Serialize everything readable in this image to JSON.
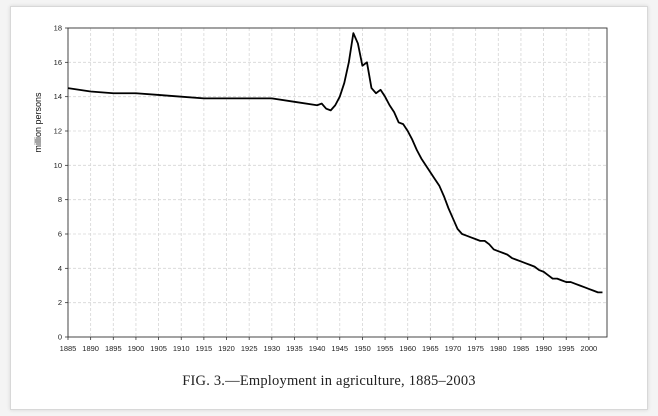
{
  "chart_data": {
    "type": "line",
    "caption": "FIG. 3.—Employment in agriculture, 1885–2003",
    "ylabel": "million persons",
    "xlabel": "",
    "xlim": [
      1885,
      2004
    ],
    "ylim": [
      0,
      18
    ],
    "yticks": [
      0,
      2,
      4,
      6,
      8,
      10,
      12,
      14,
      16,
      18
    ],
    "xticks": [
      1885,
      1890,
      1895,
      1900,
      1905,
      1910,
      1915,
      1920,
      1925,
      1930,
      1935,
      1940,
      1945,
      1950,
      1955,
      1960,
      1965,
      1970,
      1975,
      1980,
      1985,
      1990,
      1995,
      2000
    ],
    "grid": true,
    "series": [
      {
        "x": [
          1885,
          1890,
          1895,
          1900,
          1905,
          1910,
          1915,
          1920,
          1925,
          1930,
          1935,
          1940,
          1941,
          1942,
          1943,
          1944,
          1945,
          1946,
          1947,
          1948,
          1949,
          1950,
          1951,
          1952,
          1953,
          1954,
          1955,
          1956,
          1957,
          1958,
          1959,
          1960,
          1961,
          1962,
          1963,
          1964,
          1965,
          1966,
          1967,
          1968,
          1969,
          1970,
          1971,
          1972,
          1973,
          1974,
          1975,
          1976,
          1977,
          1978,
          1979,
          1980,
          1981,
          1982,
          1983,
          1984,
          1985,
          1986,
          1987,
          1988,
          1989,
          1990,
          1991,
          1992,
          1993,
          1994,
          1995,
          1996,
          1997,
          1998,
          1999,
          2000,
          2001,
          2002,
          2003
        ],
        "values": [
          14.5,
          14.3,
          14.2,
          14.2,
          14.1,
          14.0,
          13.9,
          13.9,
          13.9,
          13.9,
          13.7,
          13.5,
          13.6,
          13.3,
          13.2,
          13.5,
          14.0,
          14.8,
          16.0,
          17.7,
          17.1,
          15.8,
          16.0,
          14.5,
          14.2,
          14.4,
          14.0,
          13.5,
          13.1,
          12.5,
          12.4,
          12.0,
          11.5,
          10.9,
          10.4,
          10.0,
          9.6,
          9.2,
          8.8,
          8.2,
          7.5,
          6.9,
          6.3,
          6.0,
          5.9,
          5.8,
          5.7,
          5.6,
          5.6,
          5.4,
          5.1,
          5.0,
          4.9,
          4.8,
          4.6,
          4.5,
          4.4,
          4.3,
          4.2,
          4.1,
          3.9,
          3.8,
          3.6,
          3.4,
          3.4,
          3.3,
          3.2,
          3.2,
          3.1,
          3.0,
          2.9,
          2.8,
          2.7,
          2.6,
          2.6
        ]
      }
    ]
  },
  "colors": {
    "line": "#000000",
    "grid": "#d6d6d6",
    "axis": "#333333"
  }
}
